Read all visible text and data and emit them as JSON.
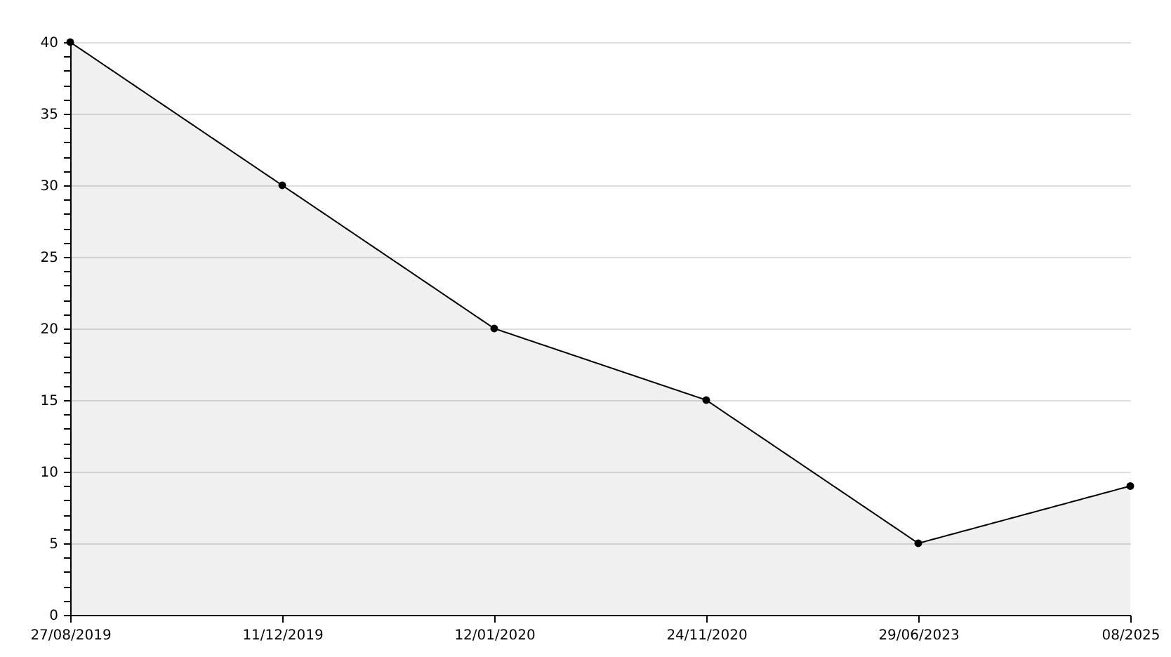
{
  "chart_data": {
    "type": "area",
    "categories": [
      "27/08/2019",
      "11/12/2019",
      "12/01/2020",
      "24/11/2020",
      "29/06/2023",
      "08/2025"
    ],
    "series": [
      {
        "color": "#000000",
        "values": [
          40,
          30,
          20,
          15,
          5,
          9
        ]
      }
    ],
    "ylim": [
      0,
      40
    ],
    "yticks": [
      0,
      {
        "value": 1,
        "label": null
      },
      {
        "value": 2,
        "label": null
      },
      {
        "value": 3,
        "label": null
      },
      {
        "value": 4,
        "label": null
      },
      5,
      {
        "value": 6,
        "label": null
      },
      {
        "value": 7,
        "label": null
      },
      {
        "value": 8,
        "label": null
      },
      {
        "value": 9,
        "label": null
      },
      10,
      {
        "value": 11,
        "label": null
      },
      {
        "value": 12,
        "label": null
      },
      {
        "value": 13,
        "label": null
      },
      {
        "value": 14,
        "label": null
      },
      15,
      {
        "value": 16,
        "label": null
      },
      {
        "value": 17,
        "label": null
      },
      {
        "value": 18,
        "label": null
      },
      {
        "value": 19,
        "label": null
      },
      20,
      {
        "value": 21,
        "label": null
      },
      {
        "value": 22,
        "label": null
      },
      {
        "value": 23,
        "label": null
      },
      {
        "value": 24,
        "label": null
      },
      25,
      {
        "value": 26,
        "label": null
      },
      {
        "value": 27,
        "label": null
      },
      {
        "value": 28,
        "label": null
      },
      {
        "value": 29,
        "label": null
      },
      30,
      {
        "value": 31,
        "label": null
      },
      {
        "value": 32,
        "label": null
      },
      {
        "value": 33,
        "label": null
      },
      {
        "value": 34,
        "label": null
      },
      35,
      {
        "value": 36,
        "label": null
      },
      {
        "value": 37,
        "label": null
      },
      {
        "value": 38,
        "label": null
      },
      {
        "value": 39,
        "label": null
      },
      40
    ],
    "grid": "y",
    "marker": "circle",
    "line_style": "solid"
  }
}
